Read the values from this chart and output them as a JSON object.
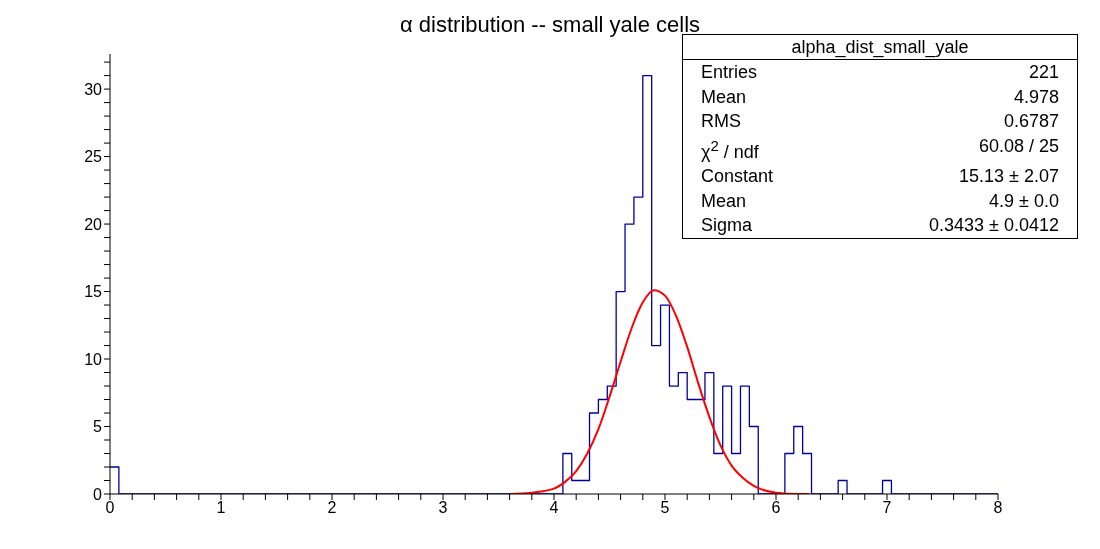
{
  "chart_data": {
    "type": "histogram",
    "title": "α distribution -- small yale cells",
    "bins": [
      0,
      0.08,
      0.16,
      0.24,
      0.32,
      0.4,
      0.48,
      0.56,
      0.64,
      0.72,
      0.8,
      0.88,
      0.96,
      1.04,
      1.12,
      1.2,
      1.28,
      1.36,
      1.44,
      1.52,
      1.6,
      1.68,
      1.76,
      1.84,
      1.92,
      2,
      2.08,
      2.16,
      2.24,
      2.32,
      2.4,
      2.48,
      2.56,
      2.64,
      2.72,
      2.8,
      2.88,
      2.96,
      3.04,
      3.12,
      3.2,
      3.28,
      3.36,
      3.44,
      3.52,
      3.6,
      3.68,
      3.76,
      3.84,
      3.92,
      4,
      4.08,
      4.16,
      4.24,
      4.32,
      4.4,
      4.48,
      4.56,
      4.64,
      4.72,
      4.8,
      4.88,
      4.96,
      5.04,
      5.12,
      5.2,
      5.28,
      5.36,
      5.44,
      5.52,
      5.6,
      5.68,
      5.76,
      5.84,
      5.92,
      6,
      6.08,
      6.16,
      6.24,
      6.32,
      6.4,
      6.48,
      6.56,
      6.64,
      6.72,
      6.8,
      6.88,
      6.96,
      7.04,
      7.12,
      7.2,
      7.28,
      7.36,
      7.44,
      7.52,
      7.6,
      7.68,
      7.76,
      7.84,
      7.92,
      8
    ],
    "series": [
      {
        "type": "histogram",
        "color": "#0000a0",
        "values": [
          2,
          0,
          0,
          0,
          0,
          0,
          0,
          0,
          0,
          0,
          0,
          0,
          0,
          0,
          0,
          0,
          0,
          0,
          0,
          0,
          0,
          0,
          0,
          0,
          0,
          0,
          0,
          0,
          0,
          0,
          0,
          0,
          0,
          0,
          0,
          0,
          0,
          0,
          0,
          0,
          0,
          0,
          0,
          0,
          0,
          0,
          0,
          0,
          0,
          0,
          0,
          3,
          1,
          1,
          6,
          7,
          8,
          15,
          20,
          22,
          31,
          11,
          14,
          8,
          9,
          7,
          7,
          9,
          3,
          8,
          3,
          8,
          5,
          0,
          0,
          0,
          3,
          5,
          3,
          0,
          0,
          0,
          1,
          0,
          0,
          0,
          0,
          1,
          0,
          0,
          0,
          0,
          0,
          0,
          0,
          0,
          0,
          0,
          0,
          0
        ]
      },
      {
        "type": "line",
        "color": "#ff0000",
        "x": [
          3.6,
          3.8,
          4.0,
          4.1,
          4.2,
          4.3,
          4.4,
          4.5,
          4.6,
          4.7,
          4.8,
          4.9,
          5.0,
          5.1,
          5.2,
          5.3,
          5.4,
          5.5,
          5.6,
          5.7,
          5.8,
          6.0,
          6.2,
          6.3
        ],
        "values": [
          0,
          0.1,
          0.4,
          0.9,
          1.7,
          3.0,
          4.8,
          7.2,
          9.8,
          12.3,
          14.2,
          15.1,
          14.7,
          13.2,
          10.9,
          8.2,
          5.7,
          3.6,
          2.1,
          1.2,
          0.6,
          0.1,
          0,
          0
        ]
      }
    ],
    "xlim": [
      0,
      8
    ],
    "xticks": [
      0,
      {
        "value": 0.2,
        "label": null
      },
      {
        "value": 0.4,
        "label": null
      },
      {
        "value": 0.6,
        "label": null
      },
      {
        "value": 0.8,
        "label": null
      },
      1,
      {
        "value": 1.2,
        "label": null
      },
      {
        "value": 1.4,
        "label": null
      },
      {
        "value": 1.6,
        "label": null
      },
      {
        "value": 1.8,
        "label": null
      },
      2,
      {
        "value": 2.2,
        "label": null
      },
      {
        "value": 2.4,
        "label": null
      },
      {
        "value": 2.6,
        "label": null
      },
      {
        "value": 2.8,
        "label": null
      },
      3,
      {
        "value": 3.2,
        "label": null
      },
      {
        "value": 3.4,
        "label": null
      },
      {
        "value": 3.6,
        "label": null
      },
      {
        "value": 3.8,
        "label": null
      },
      4,
      {
        "value": 4.2,
        "label": null
      },
      {
        "value": 4.4,
        "label": null
      },
      {
        "value": 4.6,
        "label": null
      },
      {
        "value": 4.8,
        "label": null
      },
      5,
      {
        "value": 5.2,
        "label": null
      },
      {
        "value": 5.4,
        "label": null
      },
      {
        "value": 5.6,
        "label": null
      },
      {
        "value": 5.8,
        "label": null
      },
      6,
      {
        "value": 6.2,
        "label": null
      },
      {
        "value": 6.4,
        "label": null
      },
      {
        "value": 6.6,
        "label": null
      },
      {
        "value": 6.8,
        "label": null
      },
      7,
      {
        "value": 7.2,
        "label": null
      },
      {
        "value": 7.4,
        "label": null
      },
      {
        "value": 7.6,
        "label": null
      },
      {
        "value": 7.8,
        "label": null
      },
      8
    ],
    "ylim": [
      0,
      32.6
    ],
    "yticks": [
      0,
      {
        "value": 1,
        "label": null
      },
      {
        "value": 2,
        "label": null
      },
      {
        "value": 3,
        "label": null
      },
      {
        "value": 4,
        "label": null
      },
      5,
      {
        "value": 6,
        "label": null
      },
      {
        "value": 7,
        "label": null
      },
      {
        "value": 8,
        "label": null
      },
      {
        "value": 9,
        "label": null
      },
      10,
      {
        "value": 11,
        "label": null
      },
      {
        "value": 12,
        "label": null
      },
      {
        "value": 13,
        "label": null
      },
      {
        "value": 14,
        "label": null
      },
      15,
      {
        "value": 16,
        "label": null
      },
      {
        "value": 17,
        "label": null
      },
      {
        "value": 18,
        "label": null
      },
      {
        "value": 19,
        "label": null
      },
      20,
      {
        "value": 21,
        "label": null
      },
      {
        "value": 22,
        "label": null
      },
      {
        "value": 23,
        "label": null
      },
      {
        "value": 24,
        "label": null
      },
      25,
      {
        "value": 26,
        "label": null
      },
      {
        "value": 27,
        "label": null
      },
      {
        "value": 28,
        "label": null
      },
      {
        "value": 29,
        "label": null
      },
      30,
      {
        "value": 31,
        "label": null
      },
      {
        "value": 32,
        "label": null
      }
    ],
    "annotations": [
      "alpha_dist_small_yale",
      "Entries",
      "221",
      "Mean",
      "4.978",
      "RMS",
      "0.6787",
      "χ$^{2}$ / ndf",
      "60.08 / 25",
      "Constant",
      "15.13 ± 2.07",
      "Mean",
      "4.9 ± 0.0",
      "Sigma",
      "0.3433 ± 0.0412"
    ]
  }
}
